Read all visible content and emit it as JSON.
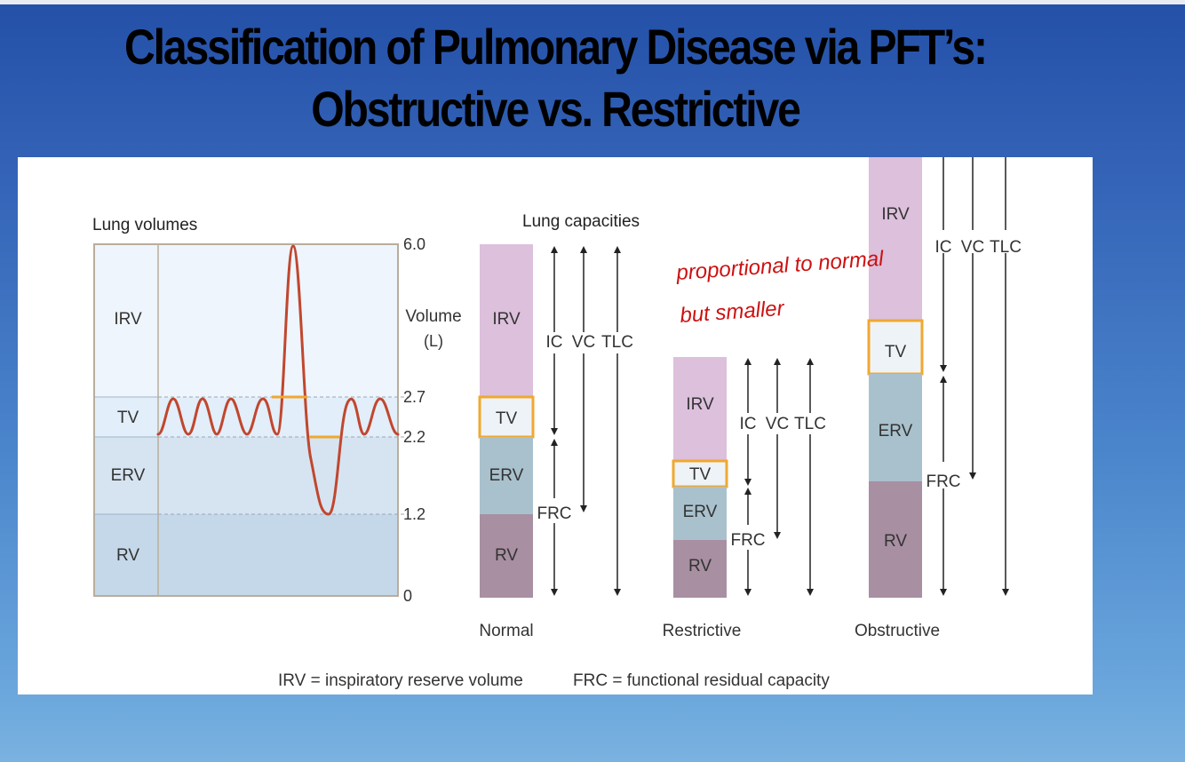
{
  "slide": {
    "title_line1": "Classification of Pulmonary Disease via PFT’s:",
    "title_line2": "Obstructive vs. Restrictive"
  },
  "lung_volumes": {
    "heading": "Lung volumes",
    "labels": {
      "irv": "IRV",
      "tv": "TV",
      "erv": "ERV",
      "rv": "RV"
    },
    "axis_title": "Volume",
    "axis_unit": "(L)",
    "ticks": [
      "6.0",
      "2.7",
      "2.2",
      "1.2",
      "0"
    ]
  },
  "lung_capacities": {
    "heading": "Lung capacities",
    "segment_labels": {
      "irv": "IRV",
      "tv": "TV",
      "erv": "ERV",
      "rv": "RV"
    },
    "arrow_labels": {
      "ic": "IC",
      "vc": "VC",
      "tlc": "TLC",
      "frc": "FRC"
    },
    "columns": [
      {
        "label": "Normal"
      },
      {
        "label": "Restrictive"
      },
      {
        "label": "Obstructive"
      }
    ]
  },
  "annotation": {
    "line1": "proportional to normal",
    "line2": "but smaller",
    "color": "#cc1111"
  },
  "legend": {
    "irv": "IRV = inspiratory reserve volume",
    "frc": "FRC = functional residual capacity"
  },
  "colors": {
    "irv": "#dcc0dc",
    "erv": "#a9c1cd",
    "rv": "#a88fa2",
    "tv_border": "#f0a830",
    "curve": "#c0472e",
    "volumes_bg": "#e8f1fa"
  }
}
